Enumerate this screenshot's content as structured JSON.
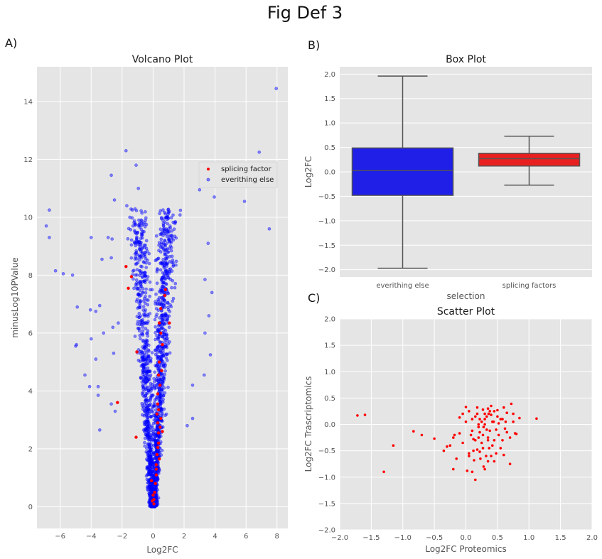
{
  "figure": {
    "title": "Fig Def 3",
    "labels": [
      "A)",
      "B)",
      "C)"
    ],
    "colors": {
      "panel_bg": "#e5e5e5",
      "grid": "#ffffff",
      "red": "#ff0000",
      "blue": "#0000ff",
      "box_blue": "#1f1fe8",
      "box_red": "#e81f1f",
      "whisker": "#555555"
    }
  },
  "chart_data": [
    {
      "id": "volcano",
      "type": "scatter",
      "title": "Volcano Plot",
      "xlabel": "Log2FC",
      "ylabel": "minusLog10PValue",
      "xlim": [
        -7.5,
        8.7
      ],
      "ylim": [
        -0.75,
        15.2
      ],
      "xticks": [
        -6,
        -4,
        -2,
        0,
        2,
        4,
        6,
        8
      ],
      "yticks": [
        0,
        2,
        4,
        6,
        8,
        10,
        12,
        14
      ],
      "grid": true,
      "legend": {
        "position": "upper right",
        "entries": [
          "splicing factor",
          "everithing else"
        ]
      },
      "series": [
        {
          "name": "everithing else",
          "color": "#0000ff",
          "alpha": 0.45,
          "points_note_free": true,
          "outliers": [
            [
              7.95,
              14.45
            ],
            [
              -1.75,
              12.3
            ],
            [
              6.85,
              12.25
            ],
            [
              -1.1,
              11.8
            ],
            [
              -2.7,
              11.45
            ],
            [
              3.1,
              11.75
            ],
            [
              3.95,
              10.7
            ],
            [
              -0.95,
              11.0
            ],
            [
              3.0,
              10.95
            ],
            [
              -6.7,
              10.25
            ],
            [
              -6.9,
              9.7
            ],
            [
              -1.7,
              10.4
            ],
            [
              5.9,
              10.55
            ],
            [
              -6.7,
              9.3
            ],
            [
              7.5,
              9.6
            ],
            [
              -1.5,
              10.0
            ],
            [
              -2.5,
              10.6
            ],
            [
              -4.0,
              9.3
            ],
            [
              -6.3,
              8.15
            ],
            [
              -5.2,
              8.0
            ],
            [
              -5.8,
              8.05
            ],
            [
              3.55,
              9.1
            ],
            [
              -2.9,
              9.3
            ],
            [
              -2.65,
              9.25
            ],
            [
              -2.7,
              8.6
            ],
            [
              -3.3,
              8.55
            ],
            [
              3.35,
              7.85
            ],
            [
              3.8,
              7.4
            ],
            [
              -3.45,
              6.95
            ],
            [
              -4.9,
              6.9
            ],
            [
              -4.05,
              6.8
            ],
            [
              -3.7,
              6.75
            ],
            [
              3.6,
              6.6
            ],
            [
              -2.6,
              6.2
            ],
            [
              3.35,
              6.0
            ],
            [
              -2.25,
              6.35
            ],
            [
              -3.2,
              6.0
            ],
            [
              -4.0,
              5.8
            ],
            [
              -5.0,
              5.55
            ],
            [
              -4.95,
              5.6
            ],
            [
              3.7,
              5.25
            ],
            [
              -3.7,
              5.1
            ],
            [
              -2.55,
              5.3
            ],
            [
              -4.4,
              4.55
            ],
            [
              -4.1,
              4.15
            ],
            [
              -3.55,
              4.15
            ],
            [
              2.55,
              4.2
            ],
            [
              3.3,
              4.55
            ],
            [
              -3.55,
              3.85
            ],
            [
              -2.7,
              3.55
            ],
            [
              -2.45,
              3.3
            ],
            [
              -3.45,
              2.65
            ],
            [
              2.55,
              3.05
            ],
            [
              2.2,
              2.8
            ]
          ]
        },
        {
          "name": "splicing factor",
          "color": "#ff0000",
          "alpha": 1.0,
          "points": [
            [
              -1.75,
              8.3
            ],
            [
              -1.4,
              7.95
            ],
            [
              -1.6,
              7.55
            ],
            [
              0.8,
              7.5
            ],
            [
              0.75,
              7.3
            ],
            [
              1.05,
              6.35
            ],
            [
              0.5,
              6.0
            ],
            [
              -1.05,
              5.35
            ],
            [
              -2.3,
              3.6
            ],
            [
              -1.1,
              2.4
            ],
            [
              0.4,
              5.0
            ],
            [
              0.35,
              4.55
            ],
            [
              0.45,
              4.2
            ],
            [
              0.3,
              3.9
            ],
            [
              0.3,
              3.55
            ],
            [
              0.25,
              3.2
            ],
            [
              0.3,
              2.9
            ],
            [
              0.35,
              2.55
            ],
            [
              0.35,
              2.2
            ],
            [
              0.25,
              1.8
            ],
            [
              0.2,
              1.45
            ],
            [
              0.2,
              1.1
            ],
            [
              0.15,
              0.8
            ],
            [
              0.1,
              0.5
            ],
            [
              0.05,
              0.25
            ],
            [
              0.05,
              0.1
            ],
            [
              0.4,
              6.35
            ],
            [
              0.5,
              6.85
            ],
            [
              0.6,
              5.6
            ],
            [
              0.35,
              3.35
            ],
            [
              0.45,
              2.75
            ],
            [
              0.3,
              2.05
            ],
            [
              0.2,
              1.3
            ],
            [
              0.55,
              4.7
            ],
            [
              0.5,
              3.05
            ],
            [
              0.6,
              2.6
            ],
            [
              0.4,
              1.65
            ],
            [
              -0.1,
              0.9
            ],
            [
              0.0,
              0.4
            ],
            [
              -0.05,
              0.2
            ]
          ]
        }
      ]
    },
    {
      "id": "box",
      "type": "box",
      "title": "Box Plot",
      "xlabel": "selection",
      "ylabel": "Log2FC",
      "ylim": [
        -2.15,
        2.15
      ],
      "yticks": [
        -2.0,
        -1.5,
        -1.0,
        -0.5,
        0.0,
        0.5,
        1.0,
        1.5,
        2.0
      ],
      "ytick_labels": [
        "−2.0",
        "−1.5",
        "−1.0",
        "−0.5",
        "0.0",
        "0.5",
        "1.0",
        "1.5",
        "2.0"
      ],
      "categories": [
        "everithing else",
        "splicing factors"
      ],
      "boxes": [
        {
          "name": "everithing else",
          "color": "#1f1fe8",
          "whisker_low": -1.97,
          "q1": -0.48,
          "median": 0.03,
          "q3": 0.49,
          "whisker_high": 1.96
        },
        {
          "name": "splicing factors",
          "color": "#e81f1f",
          "whisker_low": -0.27,
          "q1": 0.12,
          "median": 0.27,
          "q3": 0.38,
          "whisker_high": 0.73
        }
      ],
      "grid": true
    },
    {
      "id": "scatter",
      "type": "scatter",
      "title": "Scatter Plot",
      "xlabel": "Log2FC Proteomics",
      "ylabel": "Log2FC Trascriptomics",
      "xlim": [
        -2.0,
        2.0
      ],
      "ylim": [
        -2.0,
        2.0
      ],
      "xticks": [
        -2.0,
        -1.5,
        -1.0,
        -0.5,
        0.0,
        0.5,
        1.0,
        1.5,
        2.0
      ],
      "xtick_labels": [
        "−2.0",
        "−1.5",
        "−1.0",
        "−0.5",
        "0.0",
        "0.5",
        "1.0",
        "1.5",
        "2.0"
      ],
      "yticks": [
        -2.0,
        -1.5,
        -1.0,
        -0.5,
        0.0,
        0.5,
        1.0,
        1.5,
        2.0
      ],
      "ytick_labels": [
        "−2.0",
        "−1.5",
        "−1.0",
        "−0.5",
        "0.0",
        "0.5",
        "1.0",
        "1.5",
        "2.0"
      ],
      "grid": true,
      "series": [
        {
          "color": "#ff0000",
          "points": [
            [
              -1.72,
              0.17
            ],
            [
              -1.6,
              0.18
            ],
            [
              -1.3,
              -0.9
            ],
            [
              -1.15,
              -0.4
            ],
            [
              -0.83,
              -0.13
            ],
            [
              -0.7,
              -0.2
            ],
            [
              -0.5,
              -0.27
            ],
            [
              -0.35,
              -0.5
            ],
            [
              -0.3,
              -0.42
            ],
            [
              -0.25,
              -0.4
            ],
            [
              -0.2,
              -0.85
            ],
            [
              -0.18,
              -0.2
            ],
            [
              -0.15,
              -0.65
            ],
            [
              -0.1,
              -0.17
            ],
            [
              -0.05,
              -0.35
            ],
            [
              0.0,
              0.33
            ],
            [
              0.02,
              -0.88
            ],
            [
              0.05,
              -0.55
            ],
            [
              0.08,
              -0.2
            ],
            [
              0.1,
              0.1
            ],
            [
              0.12,
              -0.5
            ],
            [
              0.13,
              -0.68
            ],
            [
              0.15,
              -0.3
            ],
            [
              0.18,
              0.2
            ],
            [
              0.2,
              0.0
            ],
            [
              0.22,
              -0.15
            ],
            [
              0.25,
              -0.35
            ],
            [
              0.27,
              0.28
            ],
            [
              0.28,
              -0.05
            ],
            [
              0.3,
              0.1
            ],
            [
              0.32,
              -0.6
            ],
            [
              0.35,
              -0.25
            ],
            [
              0.36,
              0.2
            ],
            [
              0.38,
              -0.12
            ],
            [
              0.4,
              0.35
            ],
            [
              0.42,
              -0.4
            ],
            [
              0.44,
              0.05
            ],
            [
              0.45,
              -0.7
            ],
            [
              0.48,
              -0.55
            ],
            [
              0.5,
              0.15
            ],
            [
              0.52,
              -0.2
            ],
            [
              0.55,
              0.1
            ],
            [
              0.58,
              -0.3
            ],
            [
              0.6,
              -0.58
            ],
            [
              0.63,
              0.05
            ],
            [
              0.65,
              -0.15
            ],
            [
              0.7,
              -0.75
            ],
            [
              0.72,
              0.39
            ],
            [
              0.75,
              0.2
            ],
            [
              0.78,
              -0.17
            ],
            [
              0.8,
              -0.18
            ],
            [
              0.85,
              0.12
            ],
            [
              1.12,
              0.11
            ],
            [
              0.3,
              -0.85
            ],
            [
              0.22,
              -0.52
            ],
            [
              0.35,
              0.3
            ],
            [
              0.1,
              -0.9
            ],
            [
              0.15,
              -1.05
            ],
            [
              0.28,
              -0.8
            ],
            [
              0.4,
              -0.6
            ],
            [
              0.18,
              -0.48
            ],
            [
              0.05,
              0.25
            ],
            [
              0.25,
              0.05
            ],
            [
              0.33,
              -0.1
            ],
            [
              0.45,
              0.25
            ],
            [
              0.37,
              -0.45
            ],
            [
              0.2,
              -0.25
            ],
            [
              0.6,
              0.32
            ],
            [
              0.5,
              0.27
            ],
            [
              0.1,
              -0.12
            ],
            [
              -0.05,
              0.2
            ],
            [
              0.55,
              -0.45
            ],
            [
              0.65,
              0.22
            ],
            [
              0.42,
              0.05
            ],
            [
              0.3,
              0.0
            ],
            [
              0.15,
              0.15
            ],
            [
              0.2,
              -0.05
            ],
            [
              0.35,
              -0.3
            ],
            [
              0.27,
              -0.2
            ],
            [
              0.12,
              -0.28
            ],
            [
              0.4,
              0.18
            ],
            [
              0.48,
              -0.1
            ],
            [
              0.58,
              0.1
            ],
            [
              0.3,
              0.2
            ],
            [
              0.23,
              -0.65
            ],
            [
              0.35,
              -0.7
            ],
            [
              -0.2,
              -0.25
            ],
            [
              -0.1,
              0.13
            ],
            [
              0.0,
              0.05
            ],
            [
              0.18,
              0.32
            ],
            [
              0.38,
              0.25
            ],
            [
              0.52,
              0.02
            ],
            [
              0.62,
              -0.08
            ],
            [
              0.7,
              -0.25
            ],
            [
              0.75,
              0.05
            ],
            [
              0.45,
              -0.3
            ],
            [
              0.33,
              0.15
            ],
            [
              0.27,
              -0.45
            ],
            [
              0.05,
              -0.6
            ],
            [
              0.22,
              0.1
            ]
          ]
        }
      ]
    }
  ]
}
